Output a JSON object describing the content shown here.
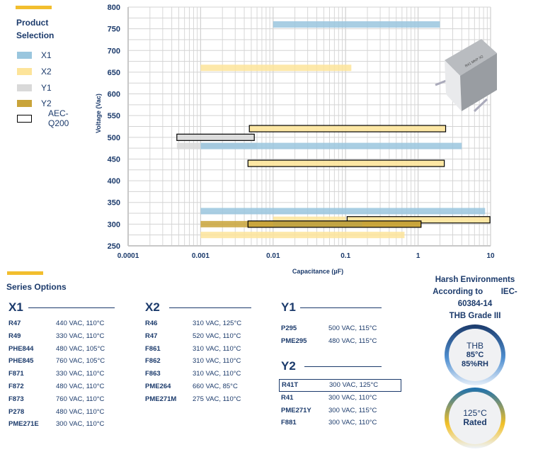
{
  "legend": {
    "title_line1": "Product",
    "title_line2": "Selection",
    "items": [
      {
        "label": "X1",
        "color": "#9ac6de"
      },
      {
        "label": "X2",
        "color": "#fde49a"
      },
      {
        "label": "Y1",
        "color": "#d9d9d9"
      },
      {
        "label": "Y2",
        "color": "#c9a43a"
      },
      {
        "label": "AEC-Q200",
        "color": "#ffffff"
      }
    ]
  },
  "chart_data": {
    "type": "bar",
    "orientation": "horizontal-range",
    "xlabel": "Capacitance (µF)",
    "ylabel": "Voltage  (Vac)",
    "x_scale": "log",
    "xlim": [
      0.0001,
      10
    ],
    "ylim": [
      250,
      800
    ],
    "x_ticks": [
      "0.0001",
      "0.001",
      "0.01",
      "0.1",
      "1",
      "10"
    ],
    "y_ticks": [
      "800",
      "750",
      "700",
      "650",
      "600",
      "550",
      "500",
      "450",
      "400",
      "350",
      "300",
      "250"
    ],
    "grid": true,
    "bars": [
      {
        "series": "X1",
        "voltage": 760,
        "cap_min": 0.01,
        "cap_max": 2,
        "aec": false
      },
      {
        "series": "X2",
        "voltage": 660,
        "cap_min": 0.001,
        "cap_max": 0.12,
        "aec": false
      },
      {
        "series": "X2",
        "voltage": 520,
        "cap_min": 0.0047,
        "cap_max": 2.4,
        "aec": true
      },
      {
        "series": "Y1",
        "voltage": 500,
        "cap_min": 0.00047,
        "cap_max": 0.0055,
        "aec": true
      },
      {
        "series": "Y1",
        "voltage": 480,
        "cap_min": 0.00047,
        "cap_max": 0.006,
        "aec": false
      },
      {
        "series": "X1",
        "voltage": 480,
        "cap_min": 0.001,
        "cap_max": 4,
        "aec": false
      },
      {
        "series": "X2",
        "voltage": 440,
        "cap_min": 0.0045,
        "cap_max": 2.3,
        "aec": true
      },
      {
        "series": "X1",
        "voltage": 330,
        "cap_min": 0.001,
        "cap_max": 8.4,
        "aec": false
      },
      {
        "series": "X2",
        "voltage": 310,
        "cap_min": 0.01,
        "cap_max": 0.1,
        "aec": false
      },
      {
        "series": "X2",
        "voltage": 310,
        "cap_min": 0.105,
        "cap_max": 9.8,
        "aec": true
      },
      {
        "series": "Y2",
        "voltage": 300,
        "cap_min": 0.001,
        "cap_max": 1.1,
        "aec": false
      },
      {
        "series": "X1",
        "voltage": 300,
        "cap_min": 0.01,
        "cap_max": 0.17,
        "aec": false
      },
      {
        "series": "Y2",
        "voltage": 300,
        "cap_min": 0.0045,
        "cap_max": 1.1,
        "aec": true
      },
      {
        "series": "X2",
        "voltage": 275,
        "cap_min": 0.001,
        "cap_max": 0.65,
        "aec": false
      }
    ]
  },
  "series_options": {
    "title": "Series Options",
    "groups": {
      "x1": {
        "title": "X1",
        "rows": [
          {
            "code": "R47",
            "spec": "440 VAC, 110°C"
          },
          {
            "code": "R49",
            "spec": "330 VAC, 110°C"
          },
          {
            "code": "PHE844",
            "spec": "480 VAC, 105°C"
          },
          {
            "code": "PHE845",
            "spec": "760 VAC, 105°C"
          },
          {
            "code": "F871",
            "spec": "330 VAC, 110°C"
          },
          {
            "code": "F872",
            "spec": "480 VAC, 110°C"
          },
          {
            "code": "F873",
            "spec": "760 VAC, 110°C"
          },
          {
            "code": "P278",
            "spec": "480 VAC, 110°C"
          },
          {
            "code": "PME271E",
            "spec": "300 VAC, 110°C"
          }
        ]
      },
      "x2": {
        "title": "X2",
        "rows": [
          {
            "code": "R46",
            "spec": "310 VAC, 125°C"
          },
          {
            "code": "R47",
            "spec": "520 VAC, 110°C"
          },
          {
            "code": "F861",
            "spec": "310 VAC, 110°C"
          },
          {
            "code": "F862",
            "spec": "310 VAC, 110°C"
          },
          {
            "code": "F863",
            "spec": "310 VAC, 110°C"
          },
          {
            "code": "PME264",
            "spec": "660 VAC, 85°C"
          },
          {
            "code": "PME271M",
            "spec": "275 VAC, 110°C"
          }
        ]
      },
      "y1": {
        "title": "Y1",
        "rows": [
          {
            "code": "P295",
            "spec": "500 VAC, 115°C"
          },
          {
            "code": "PME295",
            "spec": "480 VAC, 115°C"
          }
        ]
      },
      "y2": {
        "title": "Y2",
        "rows": [
          {
            "code": "R41T",
            "spec": "300 VAC, 125°C",
            "highlight": true
          },
          {
            "code": "R41",
            "spec": "300 VAC, 110°C"
          },
          {
            "code": "PME271Y",
            "spec": "300 VAC, 115°C"
          },
          {
            "code": "F881",
            "spec": "300 VAC, 110°C"
          }
        ]
      }
    }
  },
  "harsh": {
    "line1": "Harsh Environments",
    "line2": "According to        IEC-",
    "line3": "60384-14",
    "line4": "THB Grade III",
    "thb": {
      "l1": "THB",
      "l2": "85°C",
      "l3": "85%RH"
    },
    "rated": {
      "l1": "125°C",
      "l2": "Rated"
    }
  },
  "colors": {
    "accent": "#f2be2e",
    "navy": "#1b3a6b",
    "aec_border": "#000000"
  }
}
